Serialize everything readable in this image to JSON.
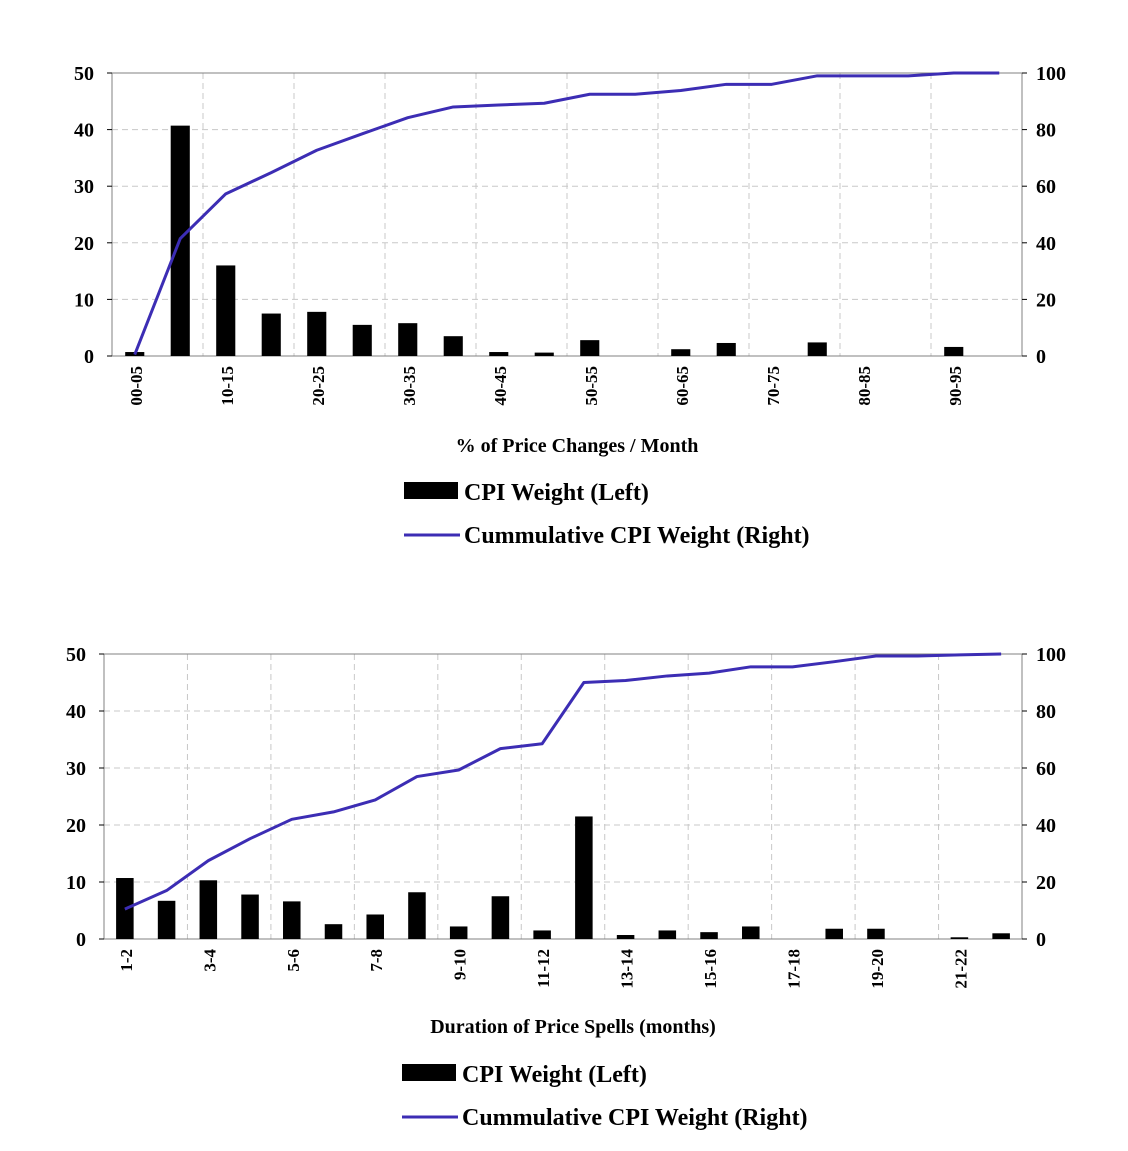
{
  "chart_data": [
    {
      "type": "bar",
      "xlabel": "%  of Price Changes / Month",
      "left_axis": {
        "min": 0,
        "max": 50,
        "ticks": [
          0,
          10,
          20,
          30,
          40,
          50
        ]
      },
      "right_axis": {
        "min": 0,
        "max": 100,
        "ticks": [
          0,
          20,
          40,
          60,
          80,
          100
        ]
      },
      "grid": true,
      "legend_position": "bottom",
      "categories": [
        "00-05",
        "05-10",
        "10-15",
        "15-20",
        "20-25",
        "25-30",
        "30-35",
        "35-40",
        "40-45",
        "45-50",
        "50-55",
        "55-60",
        "60-65",
        "65-70",
        "70-75",
        "75-80",
        "80-85",
        "85-90",
        "90-95",
        "95-100"
      ],
      "tick_labels": [
        "00-05",
        "",
        "10-15",
        "",
        "20-25",
        "",
        "30-35",
        "",
        "40-45",
        "",
        "50-55",
        "",
        "60-65",
        "",
        "70-75",
        "",
        "80-85",
        "",
        "90-95",
        ""
      ],
      "series": [
        {
          "name": "CPI Weight (Left)",
          "axis": "left",
          "type": "bar",
          "color": "#000000",
          "values": [
            0.7,
            40.7,
            16.0,
            7.5,
            7.8,
            5.5,
            5.8,
            3.5,
            0.7,
            0.6,
            2.8,
            0,
            1.2,
            2.3,
            0,
            2.4,
            0,
            0,
            1.6,
            0
          ]
        },
        {
          "name": "Cummulative CPI Weight (Right)",
          "axis": "right",
          "type": "line",
          "color": "#3c2db4",
          "values": [
            0.5,
            41.5,
            57.3,
            64.8,
            72.7,
            78.5,
            84.2,
            88.0,
            88.7,
            89.3,
            92.5,
            92.5,
            93.8,
            96.0,
            96.0,
            99.0,
            99.0,
            99.0,
            100,
            100
          ]
        }
      ],
      "legend": [
        {
          "label": "CPI Weight (Left)",
          "kind": "bar"
        },
        {
          "label": "Cummulative CPI Weight (Right)",
          "kind": "line"
        }
      ]
    },
    {
      "type": "bar",
      "xlabel": "Duration of Price Spells (months)",
      "left_axis": {
        "min": 0,
        "max": 50,
        "ticks": [
          0,
          10,
          20,
          30,
          40,
          50
        ]
      },
      "right_axis": {
        "min": 0,
        "max": 100,
        "ticks": [
          0,
          20,
          40,
          60,
          80,
          100
        ]
      },
      "grid": true,
      "legend_position": "bottom",
      "categories": [
        "1-2",
        "2-3",
        "3-4",
        "4-5",
        "5-6",
        "6-7",
        "7-8",
        "8-9",
        "9-10",
        "10-11",
        "11-12",
        "12-13",
        "13-14",
        "14-15",
        "15-16",
        "16-17",
        "17-18",
        "18-19",
        "19-20",
        "20-21",
        "21-22",
        "22-23"
      ],
      "tick_labels": [
        "1-2",
        "",
        "3-4",
        "",
        "5-6",
        "",
        "7-8",
        "",
        "9-10",
        "",
        "11-12",
        "",
        "13-14",
        "",
        "15-16",
        "",
        "17-18",
        "",
        "19-20",
        "",
        "21-22",
        ""
      ],
      "series": [
        {
          "name": "CPI Weight (Left)",
          "axis": "left",
          "type": "bar",
          "color": "#000000",
          "values": [
            10.7,
            6.7,
            10.3,
            7.8,
            6.6,
            2.6,
            4.3,
            8.2,
            2.2,
            7.5,
            1.5,
            21.5,
            0.7,
            1.5,
            1.2,
            2.2,
            0,
            1.8,
            1.8,
            0,
            0.3,
            1.0
          ]
        },
        {
          "name": "Cummulative CPI Weight (Right)",
          "axis": "right",
          "type": "line",
          "color": "#3c2db4",
          "values": [
            10.5,
            17.0,
            27.5,
            35.2,
            42.0,
            44.6,
            48.8,
            57.0,
            59.3,
            66.8,
            68.5,
            90.0,
            90.7,
            92.3,
            93.3,
            95.5,
            95.5,
            97.3,
            99.3,
            99.3,
            99.7,
            100
          ]
        }
      ],
      "legend": [
        {
          "label": "CPI Weight (Left)",
          "kind": "bar"
        },
        {
          "label": "Cummulative CPI Weight (Right)",
          "kind": "line"
        }
      ]
    }
  ]
}
